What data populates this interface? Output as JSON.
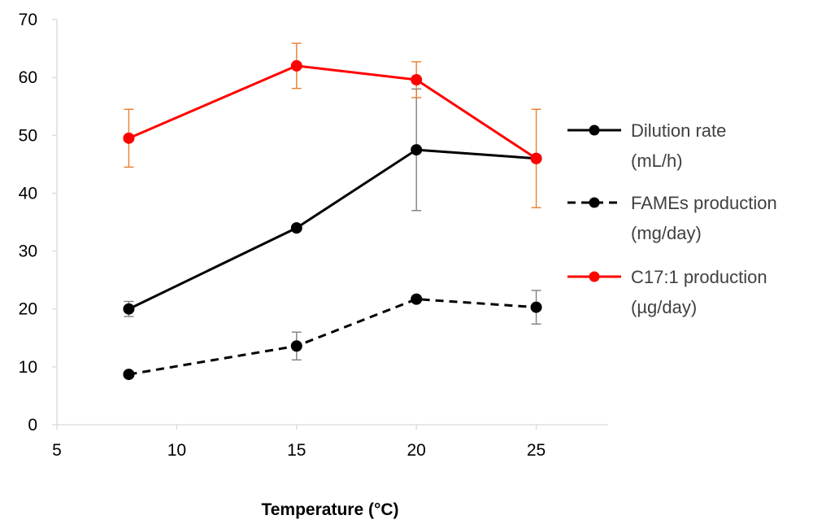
{
  "chart_data": {
    "type": "line",
    "title": "",
    "xlabel": "Temperature (°C)",
    "ylabel": "",
    "xlim": [
      5,
      28
    ],
    "ylim": [
      0,
      70
    ],
    "x_ticks": [
      5,
      10,
      15,
      20,
      25
    ],
    "y_ticks": [
      0,
      10,
      20,
      30,
      40,
      50,
      60,
      70
    ],
    "grid": false,
    "legend_position": "right",
    "series": [
      {
        "name": "Dilution rate (mL/h)",
        "legend_lines": [
          "Dilution rate",
          "(mL/h)"
        ],
        "color": "#000000",
        "dashed": false,
        "error_color": "#7f7f7f",
        "points": [
          {
            "x": 8,
            "y": 20,
            "err": 1.3
          },
          {
            "x": 15,
            "y": 34,
            "err": 0
          },
          {
            "x": 20,
            "y": 47.5,
            "err": 10.5
          },
          {
            "x": 25,
            "y": 46,
            "err": 0
          }
        ]
      },
      {
        "name": "FAMEs production (mg/day)",
        "legend_lines": [
          "FAMEs production",
          "(mg/day)"
        ],
        "color": "#000000",
        "dashed": true,
        "error_color": "#7f7f7f",
        "points": [
          {
            "x": 8,
            "y": 8.7,
            "err": 0.5
          },
          {
            "x": 15,
            "y": 13.6,
            "err": 2.4
          },
          {
            "x": 20,
            "y": 21.7,
            "err": 0.5
          },
          {
            "x": 25,
            "y": 20.3,
            "err": 2.9
          }
        ]
      },
      {
        "name": "C17:1 production (µg/day)",
        "legend_lines": [
          "C17:1 production",
          "(µg/day)"
        ],
        "color": "#ff0000",
        "dashed": false,
        "error_color": "#ed7d31",
        "points": [
          {
            "x": 8,
            "y": 49.5,
            "err": 5
          },
          {
            "x": 15,
            "y": 62,
            "err": 3.9
          },
          {
            "x": 20,
            "y": 59.6,
            "err": 3.1
          },
          {
            "x": 25,
            "y": 46,
            "err": 8.5
          }
        ]
      }
    ]
  }
}
